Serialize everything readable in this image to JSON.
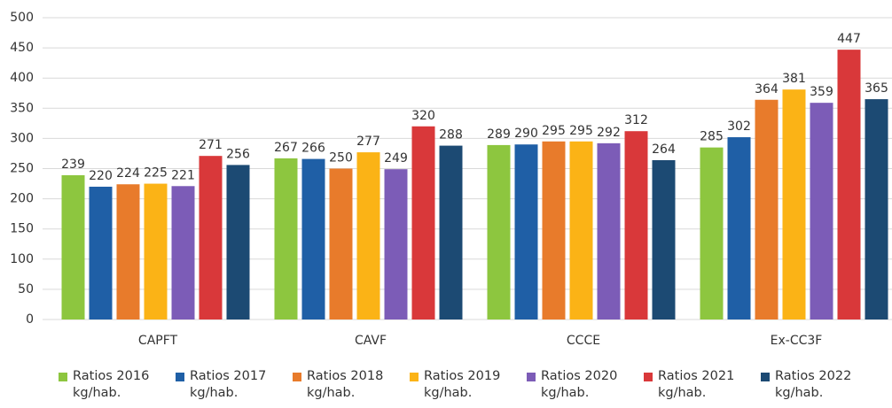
{
  "chart_data": {
    "type": "bar",
    "categories": [
      "CAPFT",
      "CAVF",
      "CCCE",
      "Ex-CC3F"
    ],
    "series": [
      {
        "name": "Ratios 2016 kg/hab.",
        "color": "#8dc63f",
        "values": [
          239,
          267,
          289,
          285
        ]
      },
      {
        "name": "Ratios 2017 kg/hab.",
        "color": "#1f5fa6",
        "values": [
          220,
          266,
          290,
          302
        ]
      },
      {
        "name": "Ratios 2018 kg/hab.",
        "color": "#e87b2b",
        "values": [
          224,
          250,
          295,
          364
        ]
      },
      {
        "name": "Ratios 2019 kg/hab.",
        "color": "#fbb316",
        "values": [
          225,
          277,
          295,
          381
        ]
      },
      {
        "name": "Ratios 2020 kg/hab.",
        "color": "#7c5cb7",
        "values": [
          221,
          249,
          292,
          359
        ]
      },
      {
        "name": "Ratios 2021 kg/hab.",
        "color": "#d9383a",
        "values": [
          271,
          320,
          312,
          447
        ]
      },
      {
        "name": "Ratios 2022 kg/hab.",
        "color": "#1c4a73",
        "values": [
          256,
          288,
          264,
          365
        ]
      }
    ],
    "ylim": [
      0,
      500
    ],
    "yticks": [
      0,
      50,
      100,
      150,
      200,
      250,
      300,
      350,
      400,
      450,
      500
    ],
    "grid": true,
    "legend": "bottom"
  }
}
